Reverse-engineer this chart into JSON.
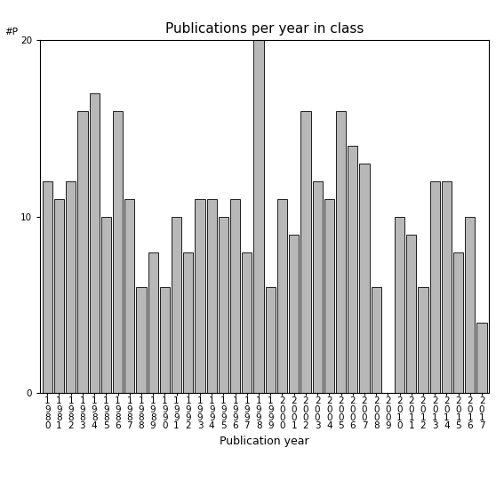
{
  "title": "Publications per year in class",
  "xlabel": "Publication year",
  "years": [
    "1980",
    "1981",
    "1982",
    "1983",
    "1984",
    "1985",
    "1986",
    "1987",
    "1988",
    "1989",
    "1990",
    "1991",
    "1992",
    "1993",
    "1994",
    "1995",
    "1996",
    "1997",
    "1998",
    "1999",
    "2000",
    "2001",
    "2002",
    "2003",
    "2004",
    "2005",
    "2006",
    "2007",
    "2008",
    "2009",
    "2010",
    "2011",
    "2012",
    "2013",
    "2014",
    "2015",
    "2016",
    "2017"
  ],
  "values": [
    12,
    11,
    12,
    16,
    17,
    10,
    16,
    11,
    6,
    8,
    6,
    10,
    8,
    11,
    11,
    10,
    11,
    8,
    20,
    6,
    11,
    9,
    16,
    12,
    11,
    16,
    14,
    13,
    6,
    0,
    10,
    9,
    6,
    12,
    12,
    8,
    10,
    4
  ],
  "bar_color": "#b8b8b8",
  "bar_edgecolor": "#000000",
  "ylim": [
    0,
    20
  ],
  "yticks": [
    0,
    10,
    20
  ],
  "background_color": "#ffffff",
  "title_fontsize": 11,
  "label_fontsize": 9,
  "tick_fontsize": 7.5
}
